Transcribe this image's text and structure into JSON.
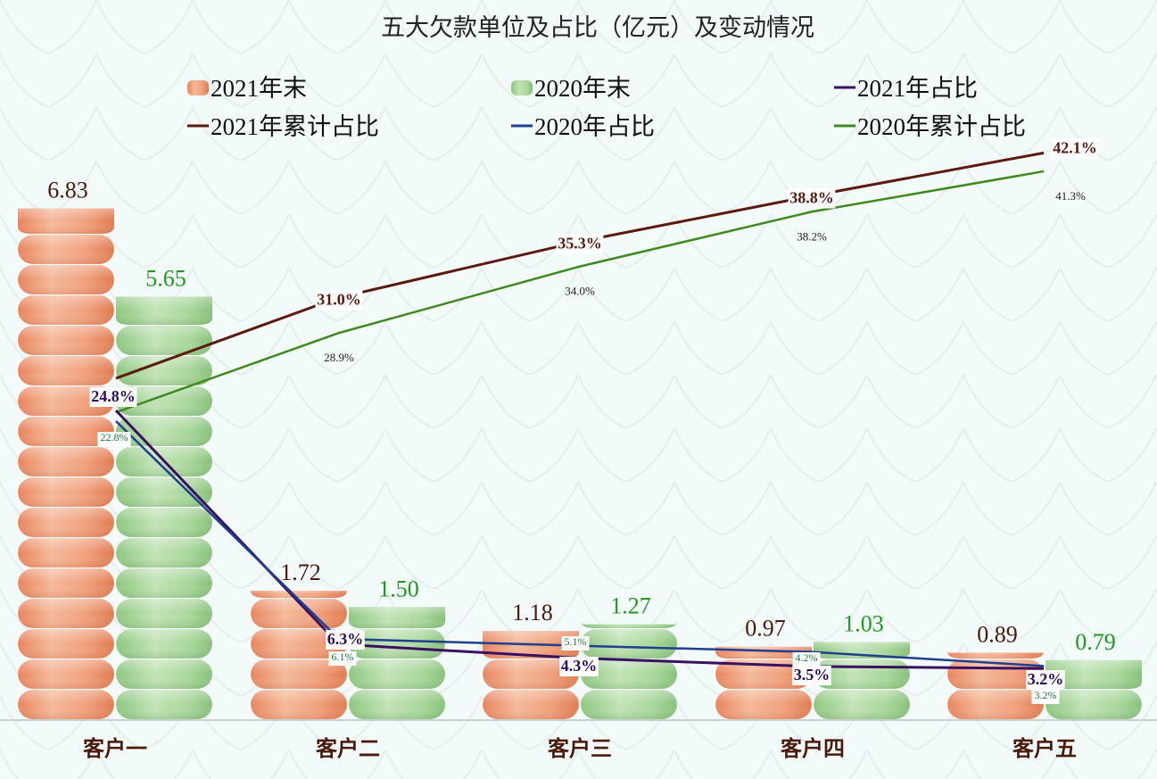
{
  "chart_data": {
    "type": "bar",
    "title": "五大欠款单位及占比（亿元）及变动情况",
    "categories": [
      "客户一",
      "客户二",
      "客户三",
      "客户四",
      "客户五"
    ],
    "series": [
      {
        "name": "2021年末",
        "kind": "bar",
        "color": "#e8916a",
        "label_color": "#4a1a0a",
        "values": [
          6.83,
          1.72,
          1.18,
          0.97,
          0.89
        ],
        "labels": [
          "6.83",
          "1.72",
          "1.18",
          "0.97",
          "0.89"
        ]
      },
      {
        "name": "2020年末",
        "kind": "bar",
        "color": "#9cd08e",
        "label_color": "#1f9a1f",
        "values": [
          5.65,
          1.5,
          1.27,
          1.03,
          0.79
        ],
        "labels": [
          "5.65",
          "1.50",
          "1.27",
          "1.03",
          "0.79"
        ]
      },
      {
        "name": "2021年占比",
        "kind": "line",
        "color": "#3a1060",
        "label_color": "#2e0b5e",
        "values": [
          24.8,
          6.3,
          4.3,
          3.5,
          3.2
        ],
        "labels": [
          "24.8%",
          "6.3%",
          "4.3%",
          "3.5%",
          "3.2%"
        ]
      },
      {
        "name": "2021年累计占比",
        "kind": "line",
        "color": "#5a1a0e",
        "label_color": "#5a1a0e",
        "values": [
          24.8,
          31.0,
          35.3,
          38.8,
          42.1
        ],
        "labels": [
          "",
          "31.0%",
          "35.3%",
          "38.8%",
          "42.1%"
        ]
      },
      {
        "name": "2020年占比",
        "kind": "line",
        "color": "#1f3f8f",
        "label_color": "#1a7a3a",
        "values": [
          22.8,
          6.1,
          5.1,
          4.2,
          3.2
        ],
        "labels": [
          "22.8%",
          "6.1%",
          "5.1%",
          "4.2%",
          "3.2%"
        ]
      },
      {
        "name": "2020年累计占比",
        "kind": "line",
        "color": "#3e8a1e",
        "label_color": "#222222",
        "values": [
          22.8,
          28.9,
          34.0,
          38.2,
          41.3
        ],
        "labels": [
          "",
          "28.9%",
          "34.0%",
          "38.2%",
          "41.3%"
        ]
      }
    ],
    "legend": {
      "position": "top",
      "rows": [
        [
          "2021年末",
          "2020年末",
          "2021年占比"
        ],
        [
          "2021年累计占比",
          "2020年占比",
          "2020年累计占比"
        ]
      ]
    },
    "xlabel": "",
    "ylabel": "",
    "grid": false,
    "y_axis_visible": false
  },
  "ui": {
    "background": "#f3fafa",
    "baseline_color": "#c8d0d0"
  }
}
